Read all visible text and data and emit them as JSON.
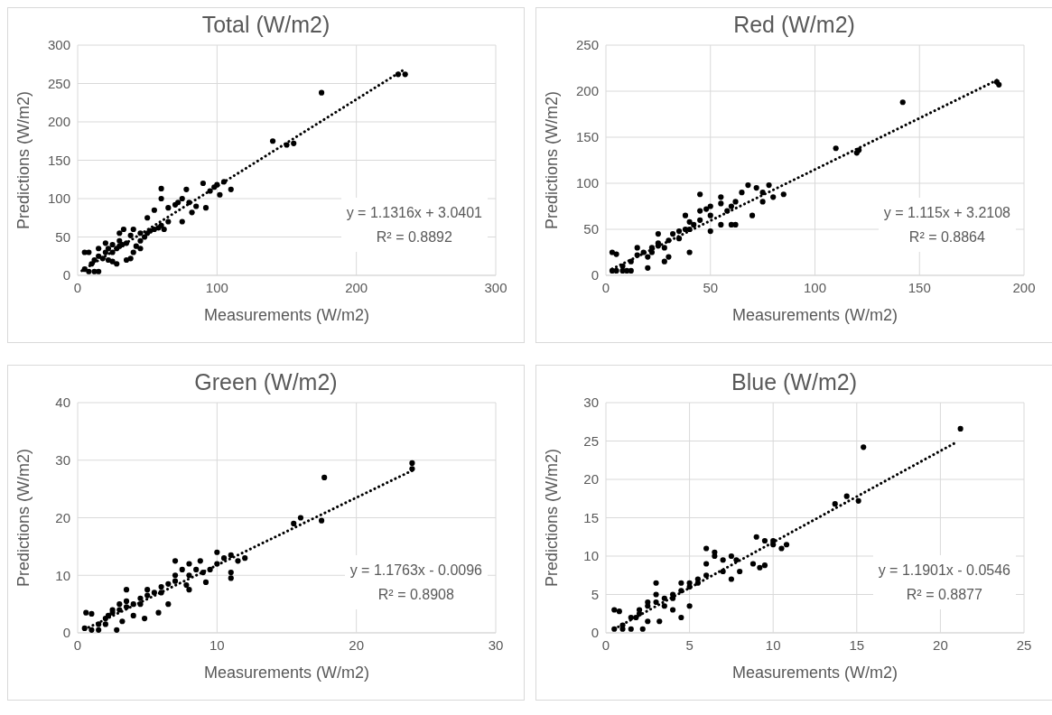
{
  "chart_data": [
    {
      "type": "scatter",
      "title": "Total (W/m2)",
      "xlabel": "Measurements (W/m2)",
      "ylabel": "Predictions (W/m2)",
      "xlim": [
        0,
        300
      ],
      "xticks": [
        0,
        100,
        200,
        300
      ],
      "ylim": [
        0,
        300
      ],
      "yticks": [
        0,
        50,
        100,
        150,
        200,
        250,
        300
      ],
      "grid": true,
      "annotations": [
        "y = 1.1316x + 3.0401",
        "R² = 0.8892"
      ],
      "series": [
        {
          "type": "scatter",
          "color": "#000000",
          "marker": "circle",
          "x": [
            5,
            8,
            5,
            8,
            12,
            15,
            10,
            12,
            15,
            18,
            20,
            22,
            25,
            25,
            28,
            30,
            30,
            32,
            35,
            28,
            25,
            35,
            38,
            40,
            42,
            45,
            48,
            45,
            50,
            52,
            55,
            58,
            60,
            62,
            40,
            50,
            55,
            60,
            60,
            65,
            70,
            72,
            75,
            80,
            85,
            78,
            82,
            90,
            92,
            95,
            98,
            100,
            102,
            105,
            110,
            15,
            22,
            33,
            65,
            75,
            140,
            150,
            155,
            175,
            230,
            235,
            20,
            38,
            45,
            30
          ],
          "values": [
            30,
            30,
            8,
            5,
            5,
            5,
            15,
            20,
            25,
            22,
            30,
            35,
            30,
            40,
            35,
            38,
            45,
            40,
            42,
            15,
            18,
            20,
            22,
            30,
            38,
            45,
            50,
            55,
            55,
            58,
            60,
            62,
            65,
            60,
            60,
            75,
            85,
            100,
            113,
            88,
            92,
            95,
            100,
            95,
            90,
            112,
            82,
            120,
            88,
            110,
            115,
            118,
            105,
            122,
            112,
            35,
            20,
            60,
            70,
            70,
            175,
            170,
            172,
            238,
            262,
            262,
            42,
            52,
            35,
            55
          ]
        },
        {
          "type": "line",
          "color": "#000000",
          "line_style": "dotted",
          "x": [
            3,
            235
          ],
          "values": [
            6,
            269
          ]
        }
      ]
    },
    {
      "type": "scatter",
      "title": "Red (W/m2)",
      "xlabel": "Measurements (W/m2)",
      "ylabel": "Predictions (W/m2)",
      "xlim": [
        0,
        200
      ],
      "xticks": [
        0,
        50,
        100,
        150,
        200
      ],
      "ylim": [
        0,
        250
      ],
      "yticks": [
        0,
        50,
        100,
        150,
        200,
        250
      ],
      "grid": true,
      "annotations": [
        "y = 1.115x + 3.2108",
        "R² = 0.8864"
      ],
      "series": [
        {
          "type": "scatter",
          "color": "#000000",
          "marker": "circle",
          "x": [
            3,
            5,
            3,
            5,
            8,
            10,
            12,
            8,
            12,
            15,
            18,
            20,
            22,
            22,
            25,
            25,
            28,
            30,
            30,
            28,
            20,
            35,
            35,
            38,
            40,
            40,
            42,
            45,
            45,
            48,
            50,
            50,
            55,
            55,
            58,
            60,
            62,
            65,
            68,
            72,
            75,
            78,
            80,
            85,
            60,
            55,
            25,
            32,
            38,
            45,
            40,
            62,
            70,
            75,
            110,
            120,
            121,
            142,
            187,
            188,
            15,
            50
          ],
          "values": [
            25,
            23,
            5,
            5,
            5,
            5,
            5,
            10,
            15,
            22,
            25,
            20,
            25,
            30,
            32,
            35,
            30,
            38,
            20,
            15,
            8,
            40,
            48,
            50,
            50,
            58,
            55,
            60,
            70,
            72,
            65,
            75,
            78,
            85,
            70,
            75,
            80,
            90,
            98,
            95,
            90,
            98,
            85,
            88,
            55,
            55,
            45,
            45,
            65,
            88,
            25,
            55,
            65,
            80,
            138,
            133,
            136,
            188,
            210,
            207,
            30,
            48
          ]
        },
        {
          "type": "line",
          "color": "#000000",
          "line_style": "dotted",
          "x": [
            3,
            188
          ],
          "values": [
            7,
            213
          ]
        }
      ]
    },
    {
      "type": "scatter",
      "title": "Green (W/m2)",
      "xlabel": "Measurements (W/m2)",
      "ylabel": "Predictions (W/m2)",
      "xlim": [
        0,
        30
      ],
      "xticks": [
        0,
        10,
        20,
        30
      ],
      "ylim": [
        0,
        40
      ],
      "yticks": [
        0,
        10,
        20,
        30,
        40
      ],
      "grid": true,
      "annotations": [
        "y = 1.1763x - 0.0096",
        "R² = 0.8908"
      ],
      "series": [
        {
          "type": "scatter",
          "color": "#000000",
          "marker": "circle",
          "x": [
            0.6,
            1,
            0.5,
            1,
            1.5,
            1.5,
            2,
            2.2,
            2.5,
            2.5,
            3,
            3,
            3.5,
            3.5,
            4,
            4,
            3.2,
            2.8,
            4.5,
            4.5,
            5,
            5,
            5.5,
            6,
            6,
            6.5,
            7,
            7,
            7,
            7.5,
            8,
            8,
            8.5,
            8.8,
            9,
            9.5,
            10,
            10,
            10.5,
            11,
            11.5,
            12,
            11,
            11,
            5.8,
            6.5,
            4.8,
            3.5,
            8,
            7.8,
            15.5,
            16,
            17.5,
            17.7,
            24,
            24,
            2,
            9.2
          ],
          "values": [
            3.5,
            3.3,
            0.8,
            0.5,
            0.5,
            1.5,
            2.5,
            3,
            3.5,
            4,
            4,
            5,
            4.5,
            5.5,
            5,
            3,
            2,
            0.5,
            6,
            5,
            6.5,
            7.5,
            7,
            7,
            8,
            8.5,
            9,
            10,
            12.5,
            11,
            10,
            12,
            11,
            12.5,
            10.5,
            11,
            14,
            12,
            13,
            13.5,
            12.5,
            13,
            9.5,
            10.5,
            3.5,
            5,
            2.5,
            7.5,
            7.5,
            8.3,
            19,
            20,
            19.5,
            27,
            29.5,
            28.5,
            1.5,
            8.8
          ]
        },
        {
          "type": "line",
          "color": "#000000",
          "line_style": "dotted",
          "x": [
            0.5,
            24
          ],
          "values": [
            0.6,
            28.2
          ]
        }
      ]
    },
    {
      "type": "scatter",
      "title": "Blue (W/m2)",
      "xlabel": "Measurements (W/m2)",
      "ylabel": "Predictions (W/m2)",
      "xlim": [
        0,
        25
      ],
      "xticks": [
        0,
        5,
        10,
        15,
        20,
        25
      ],
      "ylim": [
        0,
        30
      ],
      "yticks": [
        0,
        5,
        10,
        15,
        20,
        25,
        30
      ],
      "grid": true,
      "annotations": [
        "y = 1.1901x - 0.0546",
        "R² = 0.8877"
      ],
      "series": [
        {
          "type": "scatter",
          "color": "#000000",
          "marker": "circle",
          "x": [
            0.5,
            0.8,
            0.5,
            1,
            1.5,
            1,
            1.5,
            2,
            2,
            2.5,
            2.5,
            3,
            3,
            3.5,
            3.5,
            4,
            4,
            4.5,
            4.5,
            5,
            5,
            5.5,
            5.5,
            6,
            6,
            6,
            6.5,
            7,
            7,
            7.5,
            7.8,
            8,
            8.8,
            9,
            9.5,
            10,
            10,
            10.5,
            10.8,
            9.2,
            9.5,
            2.5,
            3.2,
            4.5,
            5,
            2.2,
            7.5,
            3,
            13.7,
            14.4,
            15.1,
            15.4,
            21.2,
            6.5,
            1.8,
            4
          ],
          "values": [
            3,
            2.8,
            0.5,
            0.5,
            0.5,
            1,
            2,
            2.5,
            3,
            3.5,
            4,
            4,
            5,
            3.5,
            4.5,
            4.5,
            5,
            5.5,
            6.5,
            6,
            6.5,
            6.5,
            7,
            7.5,
            9,
            11,
            10,
            8,
            9.5,
            10,
            9.5,
            8,
            9,
            12.5,
            12,
            11.5,
            12,
            11,
            11.5,
            8.5,
            8.8,
            1.5,
            1.5,
            2,
            3.5,
            0.5,
            7,
            6.5,
            16.8,
            17.8,
            17.2,
            24.2,
            26.6,
            10.5,
            2,
            3
          ]
        },
        {
          "type": "line",
          "color": "#000000",
          "line_style": "dotted",
          "x": [
            0.5,
            21
          ],
          "values": [
            0.5,
            24.9
          ]
        }
      ]
    }
  ]
}
